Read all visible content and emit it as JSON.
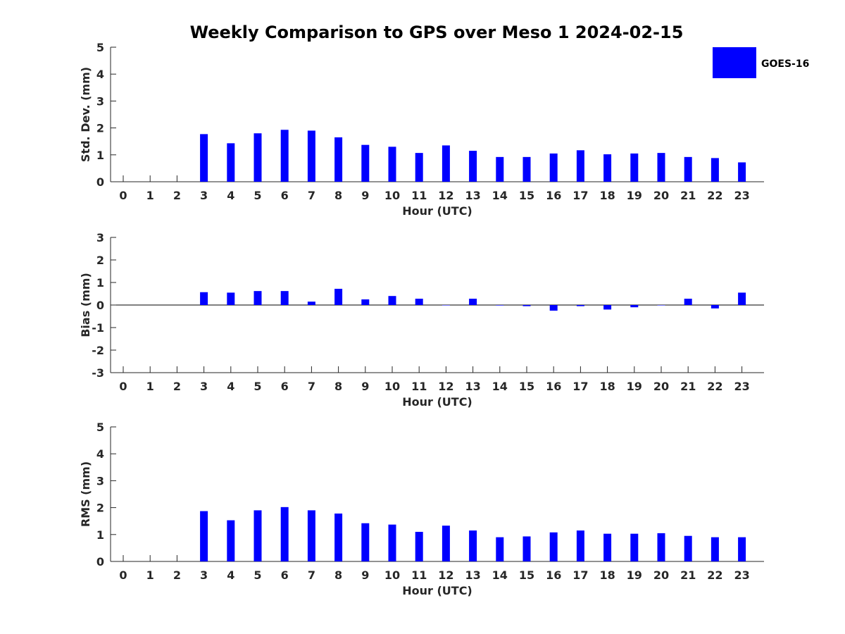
{
  "title": "Weekly Comparison to GPS over Meso 1 2024-02-15",
  "colors": {
    "bar": "#0000ff",
    "axis": "#262626"
  },
  "legend": {
    "label": "GOES-16",
    "placement": "top-right"
  },
  "chart_data": [
    {
      "type": "bar",
      "xlabel": "Hour (UTC)",
      "ylabel": "Std. Dev. (mm)",
      "ylim": [
        0,
        5
      ],
      "yticks": [
        0,
        1,
        2,
        3,
        4,
        5
      ],
      "categories": [
        "0",
        "1",
        "2",
        "3",
        "4",
        "5",
        "6",
        "7",
        "8",
        "9",
        "10",
        "11",
        "12",
        "13",
        "14",
        "15",
        "16",
        "17",
        "18",
        "19",
        "20",
        "21",
        "22",
        "23"
      ],
      "series": [
        {
          "name": "GOES-16",
          "values": [
            null,
            null,
            null,
            1.77,
            1.43,
            1.8,
            1.93,
            1.9,
            1.65,
            1.37,
            1.3,
            1.07,
            1.35,
            1.15,
            0.92,
            0.92,
            1.05,
            1.17,
            1.02,
            1.05,
            1.07,
            0.92,
            0.88,
            0.72
          ]
        }
      ]
    },
    {
      "type": "bar",
      "xlabel": "Hour (UTC)",
      "ylabel": "Bias (mm)",
      "ylim": [
        -3,
        3
      ],
      "yticks": [
        -3,
        -2,
        -1,
        0,
        1,
        2,
        3
      ],
      "categories": [
        "0",
        "1",
        "2",
        "3",
        "4",
        "5",
        "6",
        "7",
        "8",
        "9",
        "10",
        "11",
        "12",
        "13",
        "14",
        "15",
        "16",
        "17",
        "18",
        "19",
        "20",
        "21",
        "22",
        "23"
      ],
      "series": [
        {
          "name": "GOES-16",
          "values": [
            null,
            null,
            null,
            0.57,
            0.55,
            0.62,
            0.62,
            0.15,
            0.72,
            0.25,
            0.4,
            0.28,
            0.0,
            0.28,
            -0.02,
            -0.05,
            -0.25,
            -0.05,
            -0.2,
            -0.1,
            0.0,
            0.28,
            -0.15,
            0.55
          ]
        }
      ]
    },
    {
      "type": "bar",
      "xlabel": "Hour (UTC)",
      "ylabel": "RMS (mm)",
      "ylim": [
        0,
        5
      ],
      "yticks": [
        0,
        1,
        2,
        3,
        4,
        5
      ],
      "categories": [
        "0",
        "1",
        "2",
        "3",
        "4",
        "5",
        "6",
        "7",
        "8",
        "9",
        "10",
        "11",
        "12",
        "13",
        "14",
        "15",
        "16",
        "17",
        "18",
        "19",
        "20",
        "21",
        "22",
        "23"
      ],
      "series": [
        {
          "name": "GOES-16",
          "values": [
            null,
            null,
            null,
            1.87,
            1.53,
            1.9,
            2.02,
            1.9,
            1.78,
            1.42,
            1.37,
            1.1,
            1.33,
            1.15,
            0.9,
            0.93,
            1.08,
            1.15,
            1.03,
            1.03,
            1.05,
            0.95,
            0.9,
            0.9
          ]
        }
      ]
    }
  ]
}
